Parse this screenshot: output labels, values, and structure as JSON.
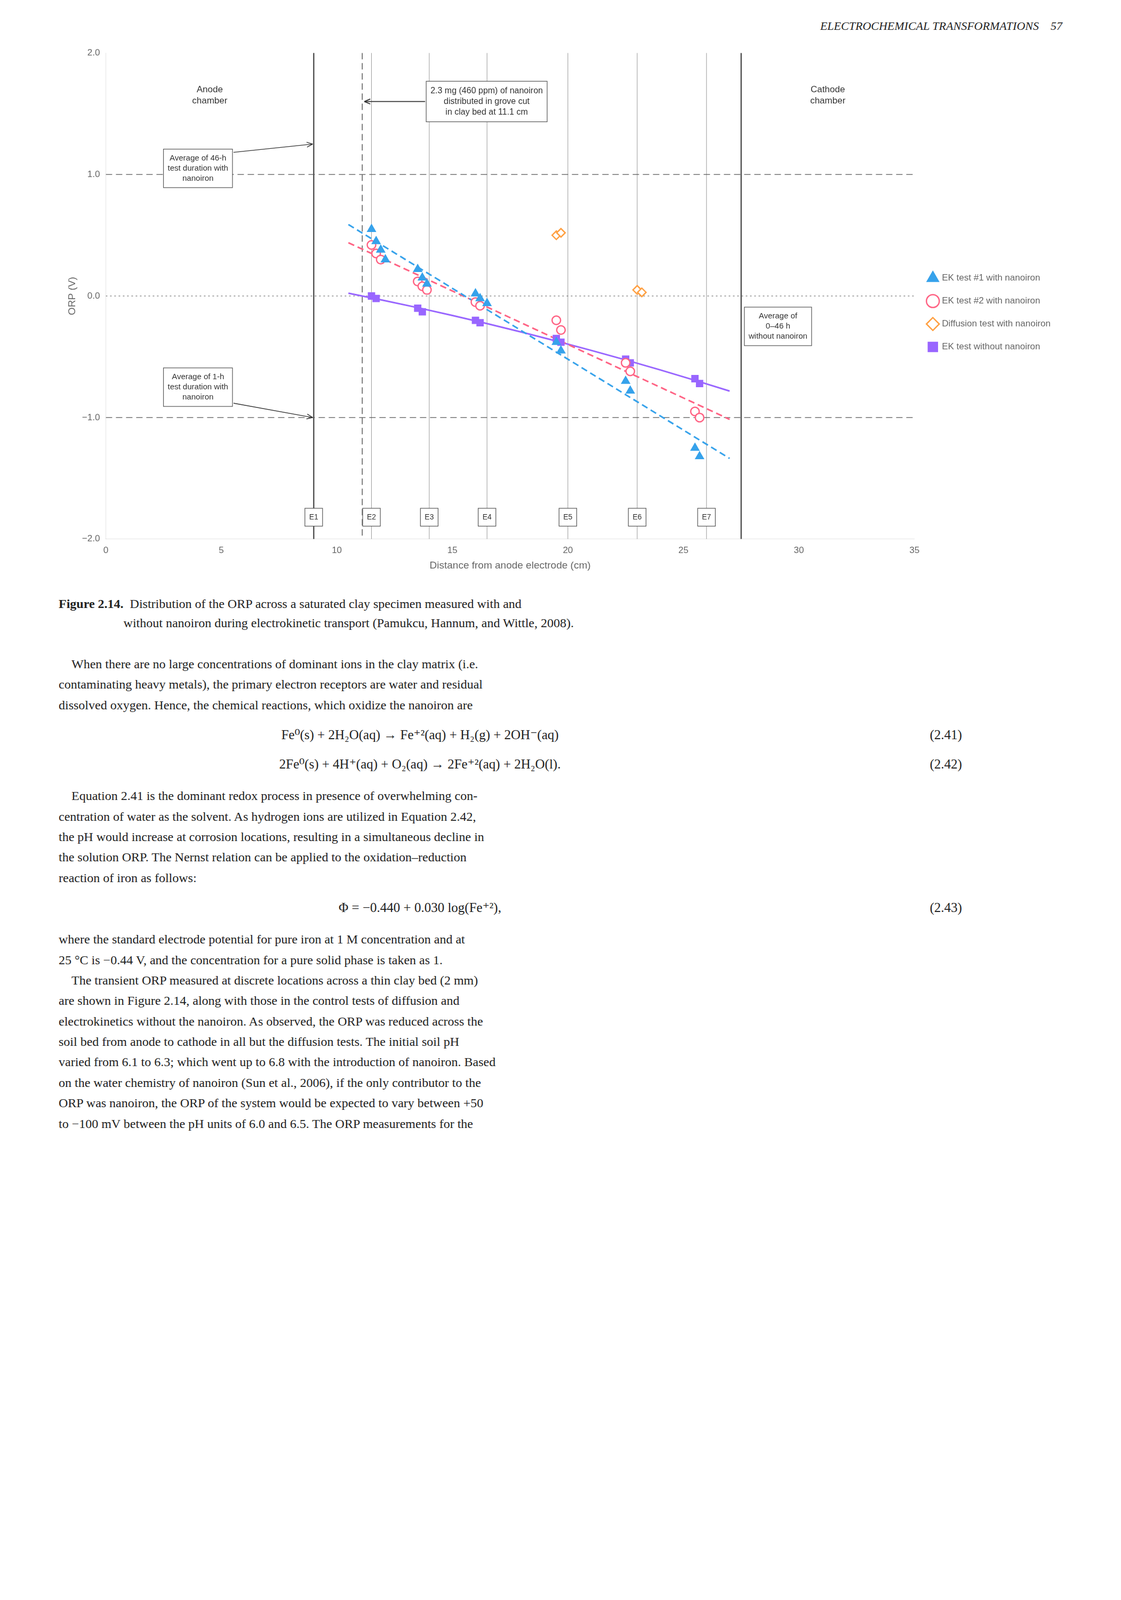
{
  "page_header": "ELECTROCHEMICAL TRANSFORMATIONS    57",
  "chart_data": {
    "type": "scatter",
    "xlabel": "Distance from anode electrode (cm)",
    "ylabel": "ORP (V)",
    "xlim": [
      0,
      35
    ],
    "ylim": [
      -2.0,
      2.0
    ],
    "xticks": [
      0,
      5,
      10,
      15,
      20,
      25,
      30,
      35
    ],
    "yticks": [
      {
        "value": -2.0,
        "label": "−2.0"
      },
      {
        "value": -1.0,
        "label": "−1.0"
      },
      {
        "value": 0.0,
        "label": "0.0"
      },
      {
        "value": 1.0,
        "label": "1.0"
      },
      {
        "value": 2.0,
        "label": "2.0"
      }
    ],
    "grid": false,
    "legend": "right",
    "series": [
      {
        "name": "EK test #1 with nanoiron",
        "marker": "triangle",
        "x": [
          11.5,
          11.7,
          11.9,
          12.1,
          13.5,
          13.7,
          13.9,
          16.0,
          16.2,
          16.5,
          19.5,
          19.7,
          22.5,
          22.7,
          25.5,
          25.7
        ],
        "values": [
          0.55,
          0.45,
          0.38,
          0.3,
          0.22,
          0.15,
          0.1,
          0.02,
          -0.02,
          -0.06,
          -0.38,
          -0.45,
          -0.7,
          -0.78,
          -1.25,
          -1.32
        ],
        "trend": {
          "line_style": "dashed",
          "x": [
            10.5,
            27.0
          ],
          "values": [
            0.5882,
            -1.3365
          ]
        }
      },
      {
        "name": "EK test #2 with nanoiron",
        "marker": "open circle",
        "x": [
          11.5,
          11.7,
          11.9,
          13.5,
          13.7,
          13.9,
          16.0,
          16.2,
          19.5,
          19.7,
          22.5,
          22.7,
          25.5,
          25.7
        ],
        "values": [
          0.42,
          0.35,
          0.3,
          0.12,
          0.08,
          0.05,
          -0.05,
          -0.08,
          -0.2,
          -0.28,
          -0.55,
          -0.62,
          -0.95,
          -1.0
        ],
        "trend": {
          "line_style": "dashed",
          "x": [
            10.5,
            27.0
          ],
          "values": [
            0.438,
            -1.0151
          ]
        }
      },
      {
        "name": "Diffusion test with nanoiron",
        "marker": "open diamond",
        "x": [
          19.5,
          19.7,
          23.0,
          23.2
        ],
        "values": [
          0.5,
          0.52,
          0.05,
          0.03
        ]
      },
      {
        "name": "EK test without nanoiron",
        "marker": "square",
        "x": [
          11.5,
          11.7,
          13.5,
          13.7,
          16.0,
          16.2,
          19.5,
          19.7,
          22.5,
          22.7,
          25.5,
          25.7
        ],
        "values": [
          0.0,
          -0.02,
          -0.1,
          -0.13,
          -0.2,
          -0.22,
          -0.35,
          -0.38,
          -0.52,
          -0.55,
          -0.68,
          -0.72
        ],
        "trend": {
          "line_style": "solid",
          "x": [
            10.5,
            12.0,
            13.5,
            15.0,
            16.5,
            18.0,
            19.5,
            21.0,
            22.5,
            24.0,
            25.5,
            27.0
          ],
          "values": [
            0.023,
            -0.035,
            -0.096,
            -0.1601,
            -0.2272,
            -0.2974,
            -0.3706,
            -0.4468,
            -0.5261,
            -0.6084,
            -0.6938,
            -0.7822
          ]
        }
      }
    ],
    "hlines": [
      {
        "y": 0.0,
        "line_style": "dotted"
      },
      {
        "y": 1.0,
        "line_style": "dashed"
      },
      {
        "y": -1.0,
        "line_style": "dashed"
      }
    ],
    "anode": {
      "x": 9.0,
      "label": "Anode\nchamber",
      "averages": [
        {
          "y": 1.25,
          "text": "Average of 46-h\ntest duration with\nnanoiron"
        },
        {
          "y": -1.0,
          "text": "Average of 1-h\ntest duration with\nnanoiron"
        }
      ]
    },
    "cathode": {
      "x": 27.5,
      "label": "Cathode\nchamber",
      "annotation": "Average of\n0–46 h\nwithout nanoiron"
    },
    "nanoiron_line": {
      "x": 11.1,
      "line_style": "dashed",
      "annotation": "2.3 mg (460 ppm) of nanoiron\ndistributed in grove cut\nin clay bed at 11.1 cm"
    },
    "electrodes": [
      {
        "label": "E1",
        "x": 9.0
      },
      {
        "label": "E2",
        "x": 11.5
      },
      {
        "label": "E3",
        "x": 14.0
      },
      {
        "label": "E4",
        "x": 16.5
      },
      {
        "label": "E5",
        "x": 20.0
      },
      {
        "label": "E6",
        "x": 23.0
      },
      {
        "label": "E7",
        "x": 26.0
      }
    ]
  },
  "caption": {
    "bold": "Figure 2.14.",
    "text": "  Distribution of the ORP across a saturated clay specimen measured with and\nwithout nanoiron during electrokinetic transport (Pamukcu, Hannum, and Wittle, 2008)."
  },
  "body": [
    {
      "paragraph": "    When there are no large concentrations of dominant ions in the clay matrix (i.e.\ncontaminating heavy metals), the primary electron receptors are water and residual\ndissolved oxygen. Hence, the chemical reactions, which oxidize the nanoiron are"
    },
    {
      "equation": "Fe⁰(s) + 2H₂O(aq) → Fe⁺²(aq) + H₂(g) + 2OH⁻(aq)",
      "number": "(2.41)"
    },
    {
      "equation": "2Fe⁰(s) + 4H⁺(aq) + O₂(aq) → 2Fe⁺²(aq) + 2H₂O(l).",
      "number": "(2.42)"
    },
    {
      "paragraph": "    Equation 2.41 is the dominant redox process in presence of overwhelming con-\ncentration of water as the solvent. As hydrogen ions are utilized in Equation 2.42,\nthe pH would increase at corrosion locations, resulting in a simultaneous decline in\nthe solution ORP. The Nernst relation can be applied to the oxidation–reduction\nreaction of iron as follows:"
    },
    {
      "equation": "Φ = −0.440 + 0.030 log(Fe⁺²),",
      "number": "(2.43)"
    },
    {
      "paragraph": "where the standard electrode potential for pure iron at 1 M concentration and at\n25 °C is −0.44 V, and the concentration for a pure solid phase is taken as 1.\n    The transient ORP measured at discrete locations across a thin clay bed (2 mm)\nare shown in Figure 2.14, along with those in the control tests of diffusion and\nelectrokinetics without the nanoiron. As observed, the ORP was reduced across the\nsoil bed from anode to cathode in all but the diffusion tests. The initial soil pH\nvaried from 6.1 to 6.3; which went up to 6.8 with the introduction of nanoiron. Based\non the water chemistry of nanoiron (Sun et al., 2006), if the only contributor to the\nORP was nanoiron, the ORP of the system would be expected to vary between +50\nto −100 mV between the pH units of 6.0 and 6.5. The ORP measurements for the"
    }
  ]
}
